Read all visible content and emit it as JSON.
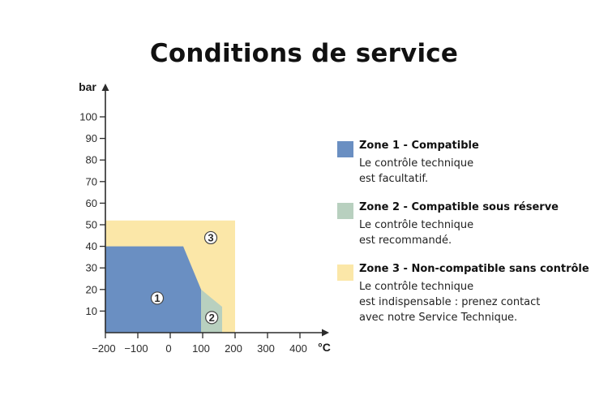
{
  "page": {
    "title": "Conditions de service"
  },
  "chart_data": {
    "type": "area",
    "xlabel": "°C",
    "ylabel": "bar",
    "xlim": [
      -200,
      400
    ],
    "ylim": [
      0,
      100
    ],
    "x_ticks": [
      "−200",
      "−100",
      "0",
      "100",
      "200",
      "300",
      "400"
    ],
    "x_tick_values": [
      -200,
      -100,
      0,
      100,
      200,
      300,
      400
    ],
    "y_ticks": [
      "10",
      "20",
      "30",
      "40",
      "50",
      "60",
      "70",
      "80",
      "90",
      "100"
    ],
    "y_tick_values": [
      10,
      20,
      30,
      40,
      50,
      60,
      70,
      80,
      90,
      100
    ],
    "background_zone": {
      "label": "3",
      "color": "#fbe7a8"
    },
    "zones": [
      {
        "label": "3",
        "color": "#fbe7a8",
        "points": [
          [
            -200,
            0
          ],
          [
            -200,
            52
          ],
          [
            200,
            52
          ],
          [
            200,
            0
          ]
        ],
        "label_at": [
          125,
          44
        ]
      },
      {
        "label": "2",
        "color": "#b8d0bf",
        "points": [
          [
            95,
            0
          ],
          [
            95,
            20
          ],
          [
            160,
            12
          ],
          [
            160,
            0
          ]
        ],
        "label_at": [
          128,
          7
        ]
      },
      {
        "label": "1",
        "color": "#6a8fc2",
        "points": [
          [
            -200,
            0
          ],
          [
            -200,
            40
          ],
          [
            40,
            40
          ],
          [
            95,
            20
          ],
          [
            95,
            0
          ]
        ],
        "label_at": [
          -40,
          16
        ]
      }
    ]
  },
  "legend": [
    {
      "title": "Zone 1 - Compatible",
      "lines": [
        "Le contrôle technique",
        "est facultatif."
      ],
      "color": "#6a8fc2"
    },
    {
      "title": "Zone 2 - Compatible sous réserve",
      "lines": [
        "Le contrôle technique",
        "est recommandé."
      ],
      "color": "#b8d0bf"
    },
    {
      "title": "Zone 3 - Non-compatible sans contrôle",
      "lines": [
        "Le contrôle technique",
        "est indispensable : prenez contact",
        "avec notre Service Technique."
      ],
      "color": "#fbe7a8"
    }
  ]
}
